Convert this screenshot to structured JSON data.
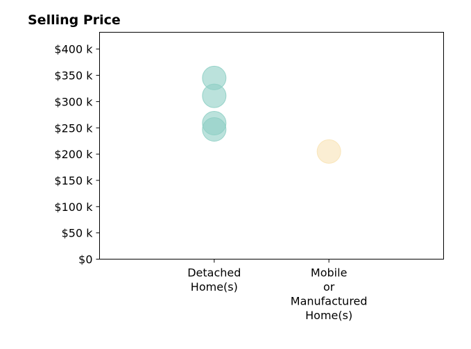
{
  "chart_data": {
    "type": "scatter",
    "title": "Selling Price",
    "xlabel": "",
    "ylabel": "",
    "categories": [
      [
        "Detached",
        "Home(s)"
      ],
      [
        "Mobile",
        "or",
        "Manufactured",
        "Home(s)"
      ]
    ],
    "y_ticks": [
      "$0",
      "$50 k",
      "$100 k",
      "$150 k",
      "$200 k",
      "$250 k",
      "$300 k",
      "$350 k",
      "$400 k"
    ],
    "y_tick_values": [
      0,
      50000,
      100000,
      150000,
      200000,
      250000,
      300000,
      350000,
      400000
    ],
    "ylim": [
      0,
      432000
    ],
    "xlim": [
      -1,
      2
    ],
    "grid": false,
    "legend": "none",
    "series": [
      {
        "category_index": 0,
        "color": "#8ecfc4",
        "values": [
          345000,
          311000,
          259000,
          247000
        ]
      },
      {
        "category_index": 1,
        "color": "#f8e3b5",
        "values": [
          205000
        ]
      }
    ]
  }
}
